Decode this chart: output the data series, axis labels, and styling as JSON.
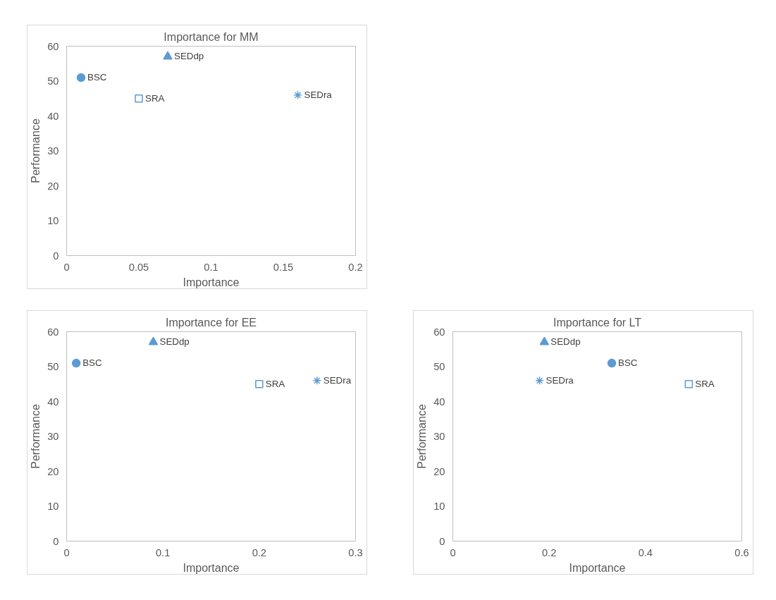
{
  "chart_data": [
    {
      "type": "scatter",
      "title": "Importance for MM",
      "xlabel": "Importance",
      "ylabel": "Performance",
      "xlim": [
        0,
        0.2
      ],
      "xticks": [
        0,
        0.05,
        0.1,
        0.15,
        0.2
      ],
      "ylim": [
        0,
        60
      ],
      "yticks": [
        0,
        10,
        20,
        30,
        40,
        50,
        60
      ],
      "grid": false,
      "series": [
        {
          "name": "BSC",
          "color": "#5b9bd5",
          "marker": "circle",
          "x": [
            0.01
          ],
          "values": [
            51
          ]
        },
        {
          "name": "SEDdp",
          "color": "#5b9bd5",
          "marker": "triangle",
          "x": [
            0.07
          ],
          "values": [
            57
          ]
        },
        {
          "name": "SRA",
          "color": "#5b9bd5",
          "marker": "square",
          "x": [
            0.05
          ],
          "values": [
            45
          ]
        },
        {
          "name": "SEDra",
          "color": "#5b9bd5",
          "marker": "cross",
          "x": [
            0.16
          ],
          "values": [
            46
          ]
        }
      ]
    },
    {
      "type": "scatter",
      "title": "Importance for EE",
      "xlabel": "Importance",
      "ylabel": "Performance",
      "xlim": [
        0,
        0.3
      ],
      "xticks": [
        0,
        0.1,
        0.2,
        0.3
      ],
      "ylim": [
        0,
        60
      ],
      "yticks": [
        0,
        10,
        20,
        30,
        40,
        50,
        60
      ],
      "grid": false,
      "series": [
        {
          "name": "BSC",
          "color": "#5b9bd5",
          "marker": "circle",
          "x": [
            0.01
          ],
          "values": [
            51
          ]
        },
        {
          "name": "SEDdp",
          "color": "#5b9bd5",
          "marker": "triangle",
          "x": [
            0.09
          ],
          "values": [
            57
          ]
        },
        {
          "name": "SRA",
          "color": "#5b9bd5",
          "marker": "square",
          "x": [
            0.2
          ],
          "values": [
            45
          ]
        },
        {
          "name": "SEDra",
          "color": "#5b9bd5",
          "marker": "cross",
          "x": [
            0.26
          ],
          "values": [
            46
          ]
        }
      ]
    },
    {
      "type": "scatter",
      "title": "Importance for LT",
      "xlabel": "Importance",
      "ylabel": "Performance",
      "xlim": [
        0,
        0.6
      ],
      "xticks": [
        0,
        0.2,
        0.4,
        0.6
      ],
      "ylim": [
        0,
        60
      ],
      "yticks": [
        0,
        10,
        20,
        30,
        40,
        50,
        60
      ],
      "grid": false,
      "series": [
        {
          "name": "BSC",
          "color": "#5b9bd5",
          "marker": "circle",
          "x": [
            0.33
          ],
          "values": [
            51
          ]
        },
        {
          "name": "SEDdp",
          "color": "#5b9bd5",
          "marker": "triangle",
          "x": [
            0.19
          ],
          "values": [
            57
          ]
        },
        {
          "name": "SRA",
          "color": "#5b9bd5",
          "marker": "square",
          "x": [
            0.49
          ],
          "values": [
            45
          ]
        },
        {
          "name": "SEDra",
          "color": "#5b9bd5",
          "marker": "cross",
          "x": [
            0.18
          ],
          "values": [
            46
          ]
        }
      ]
    }
  ]
}
